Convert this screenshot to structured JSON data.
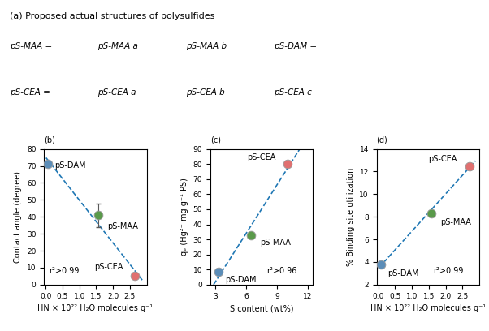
{
  "chart_data": [
    {
      "type": "diagram",
      "title": "(a) Proposed actual structures of polysulfides",
      "annotations": [
        "pS-MAA =",
        "pS-MAA a",
        "pS-MAA b",
        "pS-DAM =",
        "pS-CEA =",
        "pS-CEA a",
        "pS-CEA b",
        "pS-CEA c"
      ]
    },
    {
      "type": "scatter",
      "title": "(b)",
      "x_label": "HN × 10²² H₂O molecules g⁻¹",
      "y_label": "Contact angle (degree)",
      "xlim": [
        -0.05,
        3.0
      ],
      "ylim": [
        0,
        80
      ],
      "xticks": [
        {
          "value": 0.0,
          "label": "0.0"
        },
        {
          "value": 0.5,
          "label": "0.5"
        },
        {
          "value": 1.0,
          "label": "1.0"
        },
        {
          "value": 1.5,
          "label": "1.5"
        },
        {
          "value": 2.0,
          "label": "2.0"
        },
        {
          "value": 2.5,
          "label": "2.5"
        }
      ],
      "yticks": [
        0,
        10,
        20,
        30,
        40,
        50,
        60,
        70,
        80
      ],
      "series": [
        {
          "name": "pS-DAM",
          "color": "#5b8db8",
          "x": [
            0.07
          ],
          "values": [
            71
          ],
          "yerr": [
            0
          ]
        },
        {
          "name": "pS-MAA",
          "color": "#5a9a4a",
          "x": [
            1.57
          ],
          "values": [
            41
          ],
          "yerr": [
            7
          ]
        },
        {
          "name": "pS-CEA",
          "color": "#e07070",
          "x": [
            2.65
          ],
          "values": [
            5
          ],
          "yerr": [
            0
          ]
        },
        {
          "type": "line",
          "line_style": "dashed",
          "x": [
            0.011,
            2.889
          ],
          "values": [
            74.8,
            2.19
          ]
        }
      ],
      "annotations": [
        "r²>0.99"
      ]
    },
    {
      "type": "scatter",
      "title": "(c)",
      "x_label": "S content (wt%)",
      "y_label": "qₑ (Hg²⁺ mg g⁻¹ PS)",
      "xlim": [
        2.5,
        12.5
      ],
      "ylim": [
        0,
        90
      ],
      "xticks": [
        3,
        6,
        9,
        12
      ],
      "yticks": [
        0,
        10,
        20,
        30,
        40,
        50,
        60,
        70,
        80,
        90
      ],
      "series": [
        {
          "name": "pS-DAM",
          "color": "#5b8db8",
          "x": [
            3.3
          ],
          "values": [
            8.5
          ]
        },
        {
          "name": "pS-MAA",
          "color": "#5a9a4a",
          "x": [
            6.5
          ],
          "values": [
            33
          ]
        },
        {
          "name": "pS-CEA",
          "color": "#e07070",
          "x": [
            10.0
          ],
          "values": [
            80
          ]
        },
        {
          "type": "line",
          "line_style": "dashed",
          "x": [
            2.82,
            11.22
          ],
          "values": [
            0.0,
            90.0
          ]
        }
      ],
      "annotations": [
        "r²>0.96"
      ]
    },
    {
      "type": "scatter",
      "title": "(d)",
      "x_label": "HN × 10²² H₂O molecules g⁻¹",
      "y_label": "% Binding site utilization",
      "xlim": [
        -0.05,
        3.0
      ],
      "ylim": [
        2,
        14
      ],
      "xticks": [
        {
          "value": 0.0,
          "label": "0.0"
        },
        {
          "value": 0.5,
          "label": "0.5"
        },
        {
          "value": 1.0,
          "label": "1.0"
        },
        {
          "value": 1.5,
          "label": "1.5"
        },
        {
          "value": 2.0,
          "label": "2.0"
        },
        {
          "value": 2.5,
          "label": "2.5"
        }
      ],
      "yticks": [
        2,
        4,
        6,
        8,
        10,
        12,
        14
      ],
      "series": [
        {
          "name": "pS-DAM",
          "color": "#5b8db8",
          "x": [
            0.07
          ],
          "values": [
            3.8
          ]
        },
        {
          "name": "pS-MAA",
          "color": "#5a9a4a",
          "x": [
            1.57
          ],
          "values": [
            8.3
          ]
        },
        {
          "name": "pS-CEA",
          "color": "#e07070",
          "x": [
            2.7
          ],
          "values": [
            12.5
          ]
        },
        {
          "type": "line",
          "line_style": "dashed",
          "x": [
            0.011,
            2.889
          ],
          "values": [
            3.47,
            12.95
          ]
        }
      ],
      "annotations": [
        "r²>0.99"
      ]
    }
  ]
}
